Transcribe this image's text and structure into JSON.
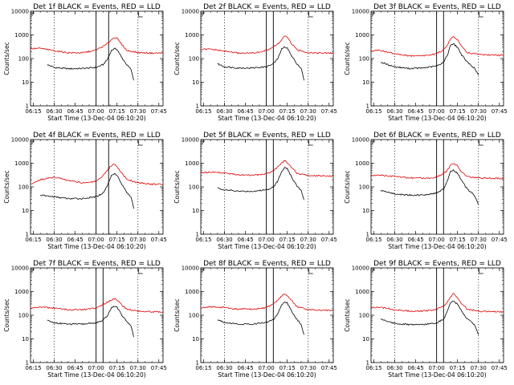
{
  "figure": {
    "colors": {
      "events": "#000000",
      "lld": "#e00000",
      "frame": "#000000",
      "background": "#ffffff"
    },
    "panels_layout": {
      "rows": 3,
      "cols": 3
    }
  },
  "chart_data": [
    {
      "type": "line",
      "title": "Det 1f BLACK = Events, RED = LLD",
      "xlabel": "Start Time (13-Dec-04 06:10:20)",
      "ylabel": "Counts/sec",
      "yscale": "log",
      "ylim": [
        1,
        10000
      ],
      "xlim": [
        "06:13",
        "07:48"
      ],
      "xticks": [
        "06:15",
        "06:30",
        "06:45",
        "07:00",
        "07:15",
        "07:30",
        "07:45"
      ],
      "yticks": [
        "1",
        "10",
        "100",
        "1000",
        "10000"
      ],
      "vertical_lines": {
        "dotted": [
          "06:30",
          "07:30"
        ],
        "solid": [
          "07:00",
          "07:09"
        ]
      },
      "series": [
        {
          "name": "Events",
          "color": "#000000",
          "x": [
            "06:25",
            "06:30",
            "06:40",
            "06:50",
            "07:00",
            "07:05",
            "07:08",
            "07:11",
            "07:13",
            "07:15",
            "07:18",
            "07:22",
            "07:25",
            "07:27"
          ],
          "y": [
            55,
            42,
            37,
            38,
            42,
            55,
            90,
            220,
            260,
            250,
            120,
            55,
            35,
            12
          ]
        },
        {
          "name": "LLD",
          "color": "#e00000",
          "x": [
            "06:13",
            "06:20",
            "06:30",
            "06:40",
            "06:50",
            "06:58",
            "07:03",
            "07:07",
            "07:10",
            "07:13",
            "07:15",
            "07:18",
            "07:22",
            "07:30",
            "07:40",
            "07:48"
          ],
          "y": [
            260,
            270,
            215,
            175,
            175,
            210,
            280,
            380,
            550,
            800,
            720,
            420,
            220,
            180,
            170,
            170
          ]
        }
      ]
    },
    {
      "type": "line",
      "title": "Det 2f BLACK = Events, RED = LLD",
      "xlabel": "Start Time (13-Dec-04 06:10:20)",
      "ylabel": "Counts/sec",
      "yscale": "log",
      "ylim": [
        1,
        10000
      ],
      "xlim": [
        "06:13",
        "07:48"
      ],
      "xticks": [
        "06:15",
        "06:30",
        "06:45",
        "07:00",
        "07:15",
        "07:30",
        "07:45"
      ],
      "yticks": [
        "1",
        "10",
        "100",
        "1000",
        "10000"
      ],
      "vertical_lines": {
        "dotted": [
          "06:30",
          "07:30"
        ],
        "solid": [
          "07:00",
          "07:05"
        ]
      },
      "series": [
        {
          "name": "Events",
          "color": "#000000",
          "x": [
            "06:25",
            "06:30",
            "06:40",
            "06:50",
            "07:00",
            "07:05",
            "07:08",
            "07:11",
            "07:13",
            "07:15",
            "07:18",
            "07:22",
            "07:25",
            "07:27"
          ],
          "y": [
            60,
            45,
            40,
            40,
            45,
            60,
            95,
            250,
            300,
            290,
            130,
            60,
            38,
            12
          ]
        },
        {
          "name": "LLD",
          "color": "#e00000",
          "x": [
            "06:13",
            "06:20",
            "06:30",
            "06:40",
            "06:50",
            "06:58",
            "07:03",
            "07:07",
            "07:10",
            "07:13",
            "07:15",
            "07:18",
            "07:22",
            "07:30",
            "07:40",
            "07:48"
          ],
          "y": [
            240,
            250,
            205,
            170,
            170,
            200,
            270,
            360,
            520,
            900,
            780,
            430,
            230,
            180,
            170,
            170
          ]
        }
      ]
    },
    {
      "type": "line",
      "title": "Det 3f BLACK = Events, RED = LLD",
      "xlabel": "Start Time (13-Dec-04 06:10:20)",
      "ylabel": "Counts/sec",
      "yscale": "log",
      "ylim": [
        1,
        10000
      ],
      "xlim": [
        "06:13",
        "07:48"
      ],
      "xticks": [
        "06:15",
        "06:30",
        "06:45",
        "07:00",
        "07:15",
        "07:30",
        "07:45"
      ],
      "yticks": [
        "1",
        "10",
        "100",
        "1000",
        "10000"
      ],
      "vertical_lines": {
        "dotted": [
          "06:30",
          "07:30"
        ],
        "solid": [
          "07:00",
          "07:05"
        ]
      },
      "series": [
        {
          "name": "Events",
          "color": "#000000",
          "x": [
            "06:20",
            "06:25",
            "06:30",
            "06:40",
            "06:50",
            "07:00",
            "07:05",
            "07:08",
            "07:10",
            "07:12",
            "07:15",
            "07:18",
            "07:22",
            "07:27",
            "07:30"
          ],
          "y": [
            70,
            55,
            45,
            38,
            40,
            48,
            70,
            150,
            380,
            420,
            300,
            140,
            70,
            40,
            20
          ]
        },
        {
          "name": "LLD",
          "color": "#e00000",
          "x": [
            "06:13",
            "06:20",
            "06:30",
            "06:40",
            "06:50",
            "06:58",
            "07:03",
            "07:07",
            "07:10",
            "07:12",
            "07:15",
            "07:18",
            "07:22",
            "07:30",
            "07:40",
            "07:48"
          ],
          "y": [
            210,
            220,
            160,
            130,
            130,
            150,
            200,
            300,
            700,
            900,
            600,
            330,
            180,
            150,
            140,
            140
          ]
        }
      ]
    },
    {
      "type": "line",
      "title": "Det 4f BLACK = Events, RED = LLD",
      "xlabel": "Start Time (13-Dec-04 06:10:20)",
      "ylabel": "Counts/sec",
      "yscale": "log",
      "ylim": [
        1,
        10000
      ],
      "xlim": [
        "06:13",
        "07:48"
      ],
      "xticks": [
        "06:15",
        "06:30",
        "06:45",
        "07:00",
        "07:15",
        "07:30",
        "07:45"
      ],
      "yticks": [
        "1",
        "10",
        "100",
        "1000",
        "10000"
      ],
      "vertical_lines": {
        "dotted": [
          "06:30",
          "07:30"
        ],
        "solid": [
          "07:00",
          "07:09"
        ]
      },
      "series": [
        {
          "name": "Events",
          "color": "#000000",
          "x": [
            "06:20",
            "06:30",
            "06:40",
            "06:50",
            "07:00",
            "07:05",
            "07:08",
            "07:11",
            "07:13",
            "07:15",
            "07:18",
            "07:22",
            "07:25",
            "07:27"
          ],
          "y": [
            45,
            38,
            32,
            32,
            38,
            55,
            110,
            300,
            380,
            320,
            140,
            60,
            38,
            12
          ]
        },
        {
          "name": "LLD",
          "color": "#e00000",
          "x": [
            "06:13",
            "06:20",
            "06:30",
            "06:40",
            "06:50",
            "06:58",
            "07:03",
            "07:07",
            "07:10",
            "07:13",
            "07:15",
            "07:18",
            "07:22",
            "07:30",
            "07:40",
            "07:48"
          ],
          "y": [
            130,
            200,
            260,
            190,
            150,
            160,
            220,
            400,
            700,
            900,
            700,
            400,
            210,
            150,
            130,
            130
          ]
        }
      ]
    },
    {
      "type": "line",
      "title": "Det 5f BLACK = Events, RED = LLD",
      "xlabel": "Start Time (13-Dec-04 06:10:20)",
      "ylabel": "Counts/sec",
      "yscale": "log",
      "ylim": [
        1,
        10000
      ],
      "xlim": [
        "06:13",
        "07:48"
      ],
      "xticks": [
        "06:15",
        "06:30",
        "06:45",
        "07:00",
        "07:15",
        "07:30",
        "07:45"
      ],
      "yticks": [
        "1",
        "10",
        "100",
        "1000",
        "10000"
      ],
      "vertical_lines": {
        "dotted": [
          "06:30",
          "07:30"
        ],
        "solid": [
          "07:00",
          "07:05"
        ]
      },
      "series": [
        {
          "name": "Events",
          "color": "#000000",
          "x": [
            "06:25",
            "06:30",
            "06:40",
            "06:50",
            "07:00",
            "07:05",
            "07:08",
            "07:11",
            "07:13",
            "07:15",
            "07:18",
            "07:22",
            "07:25",
            "07:27"
          ],
          "y": [
            90,
            75,
            65,
            65,
            75,
            100,
            170,
            450,
            650,
            600,
            260,
            110,
            70,
            28
          ]
        },
        {
          "name": "LLD",
          "color": "#e00000",
          "x": [
            "06:13",
            "06:20",
            "06:30",
            "06:40",
            "06:50",
            "06:58",
            "07:03",
            "07:07",
            "07:10",
            "07:13",
            "07:15",
            "07:18",
            "07:22",
            "07:30",
            "07:40",
            "07:48"
          ],
          "y": [
            400,
            420,
            390,
            320,
            310,
            340,
            420,
            600,
            900,
            1300,
            1100,
            650,
            380,
            300,
            290,
            290
          ]
        }
      ]
    },
    {
      "type": "line",
      "title": "Det 6f BLACK = Events, RED = LLD",
      "xlabel": "Start Time (13-Dec-04 06:10:20)",
      "ylabel": "Counts/sec",
      "yscale": "log",
      "ylim": [
        1,
        10000
      ],
      "xlim": [
        "06:13",
        "07:48"
      ],
      "xticks": [
        "06:15",
        "06:30",
        "06:45",
        "07:00",
        "07:15",
        "07:30",
        "07:45"
      ],
      "yticks": [
        "1",
        "10",
        "100",
        "1000",
        "10000"
      ],
      "vertical_lines": {
        "dotted": [
          "06:30",
          "07:30"
        ],
        "solid": [
          "07:00",
          "07:05"
        ]
      },
      "series": [
        {
          "name": "Events",
          "color": "#000000",
          "x": [
            "06:20",
            "06:25",
            "06:30",
            "06:40",
            "06:50",
            "07:00",
            "07:05",
            "07:08",
            "07:10",
            "07:12",
            "07:15",
            "07:18",
            "07:22",
            "07:27",
            "07:30"
          ],
          "y": [
            70,
            60,
            50,
            45,
            45,
            55,
            80,
            200,
            450,
            500,
            380,
            180,
            80,
            45,
            18
          ]
        },
        {
          "name": "LLD",
          "color": "#e00000",
          "x": [
            "06:13",
            "06:20",
            "06:30",
            "06:40",
            "06:50",
            "06:58",
            "07:03",
            "07:07",
            "07:10",
            "07:12",
            "07:15",
            "07:18",
            "07:22",
            "07:30",
            "07:40",
            "07:48"
          ],
          "y": [
            300,
            310,
            280,
            240,
            230,
            250,
            320,
            450,
            800,
            1000,
            750,
            420,
            270,
            240,
            230,
            230
          ]
        }
      ]
    },
    {
      "type": "line",
      "title": "Det 7f BLACK = Events, RED = LLD",
      "xlabel": "Start Time (13-Dec-04 06:10:20)",
      "ylabel": "Counts/sec",
      "yscale": "log",
      "ylim": [
        1,
        10000
      ],
      "xlim": [
        "06:13",
        "07:48"
      ],
      "xticks": [
        "06:15",
        "06:30",
        "06:45",
        "07:00",
        "07:15",
        "07:30",
        "07:45"
      ],
      "yticks": [
        "1",
        "10",
        "100",
        "1000",
        "10000"
      ],
      "vertical_lines": {
        "dotted": [
          "06:30",
          "07:30"
        ],
        "solid": [
          "07:00",
          "07:05"
        ]
      },
      "series": [
        {
          "name": "Events",
          "color": "#000000",
          "x": [
            "06:25",
            "06:30",
            "06:40",
            "06:50",
            "07:00",
            "07:05",
            "07:08",
            "07:11",
            "07:13",
            "07:15",
            "07:18",
            "07:22",
            "07:25",
            "07:27"
          ],
          "y": [
            60,
            48,
            42,
            42,
            48,
            60,
            95,
            200,
            240,
            230,
            110,
            55,
            35,
            12
          ]
        },
        {
          "name": "LLD",
          "color": "#e00000",
          "x": [
            "06:13",
            "06:20",
            "06:30",
            "06:40",
            "06:50",
            "06:58",
            "07:03",
            "07:07",
            "07:10",
            "07:13",
            "07:15",
            "07:18",
            "07:22",
            "07:30",
            "07:40",
            "07:48"
          ],
          "y": [
            200,
            220,
            200,
            170,
            170,
            190,
            240,
            320,
            420,
            500,
            450,
            290,
            180,
            150,
            140,
            140
          ]
        }
      ]
    },
    {
      "type": "line",
      "title": "Det 8f BLACK = Events, RED = LLD",
      "xlabel": "Start Time (13-Dec-04 06:10:20)",
      "ylabel": "Counts/sec",
      "yscale": "log",
      "ylim": [
        1,
        10000
      ],
      "xlim": [
        "06:13",
        "07:48"
      ],
      "xticks": [
        "06:15",
        "06:30",
        "06:45",
        "07:00",
        "07:15",
        "07:30",
        "07:45"
      ],
      "yticks": [
        "1",
        "10",
        "100",
        "1000",
        "10000"
      ],
      "vertical_lines": {
        "dotted": [
          "06:30",
          "07:30"
        ],
        "solid": [
          "07:00",
          "07:05"
        ]
      },
      "series": [
        {
          "name": "Events",
          "color": "#000000",
          "x": [
            "06:25",
            "06:30",
            "06:40",
            "06:50",
            "07:00",
            "07:05",
            "07:08",
            "07:11",
            "07:13",
            "07:15",
            "07:18",
            "07:22",
            "07:25",
            "07:27"
          ],
          "y": [
            65,
            50,
            42,
            42,
            50,
            65,
            110,
            280,
            350,
            330,
            150,
            65,
            40,
            15
          ]
        },
        {
          "name": "LLD",
          "color": "#e00000",
          "x": [
            "06:13",
            "06:20",
            "06:30",
            "06:40",
            "06:50",
            "06:58",
            "07:03",
            "07:07",
            "07:10",
            "07:13",
            "07:15",
            "07:18",
            "07:22",
            "07:30",
            "07:40",
            "07:48"
          ],
          "y": [
            210,
            230,
            210,
            180,
            180,
            200,
            260,
            360,
            550,
            800,
            700,
            420,
            230,
            170,
            160,
            160
          ]
        }
      ]
    },
    {
      "type": "line",
      "title": "Det 9f BLACK = Events, RED = LLD",
      "xlabel": "Start Time (13-Dec-04 06:10:20)",
      "ylabel": "Counts/sec",
      "yscale": "log",
      "ylim": [
        1,
        10000
      ],
      "xlim": [
        "06:13",
        "07:48"
      ],
      "xticks": [
        "06:15",
        "06:30",
        "06:45",
        "07:00",
        "07:15",
        "07:30",
        "07:45"
      ],
      "yticks": [
        "1",
        "10",
        "100",
        "1000",
        "10000"
      ],
      "vertical_lines": {
        "dotted": [
          "06:30",
          "07:30"
        ],
        "solid": [
          "07:00",
          "07:05"
        ]
      },
      "series": [
        {
          "name": "Events",
          "color": "#000000",
          "x": [
            "06:20",
            "06:25",
            "06:30",
            "06:40",
            "06:50",
            "07:00",
            "07:05",
            "07:08",
            "07:10",
            "07:12",
            "07:15",
            "07:18",
            "07:22",
            "07:27",
            "07:30"
          ],
          "y": [
            70,
            55,
            45,
            40,
            40,
            48,
            70,
            160,
            350,
            400,
            290,
            140,
            70,
            40,
            15
          ]
        },
        {
          "name": "LLD",
          "color": "#e00000",
          "x": [
            "06:13",
            "06:20",
            "06:30",
            "06:40",
            "06:50",
            "06:58",
            "07:03",
            "07:07",
            "07:10",
            "07:12",
            "07:15",
            "07:18",
            "07:22",
            "07:30",
            "07:40",
            "07:48"
          ],
          "y": [
            210,
            220,
            170,
            150,
            150,
            170,
            210,
            300,
            600,
            800,
            550,
            300,
            180,
            150,
            140,
            140
          ]
        }
      ]
    }
  ]
}
